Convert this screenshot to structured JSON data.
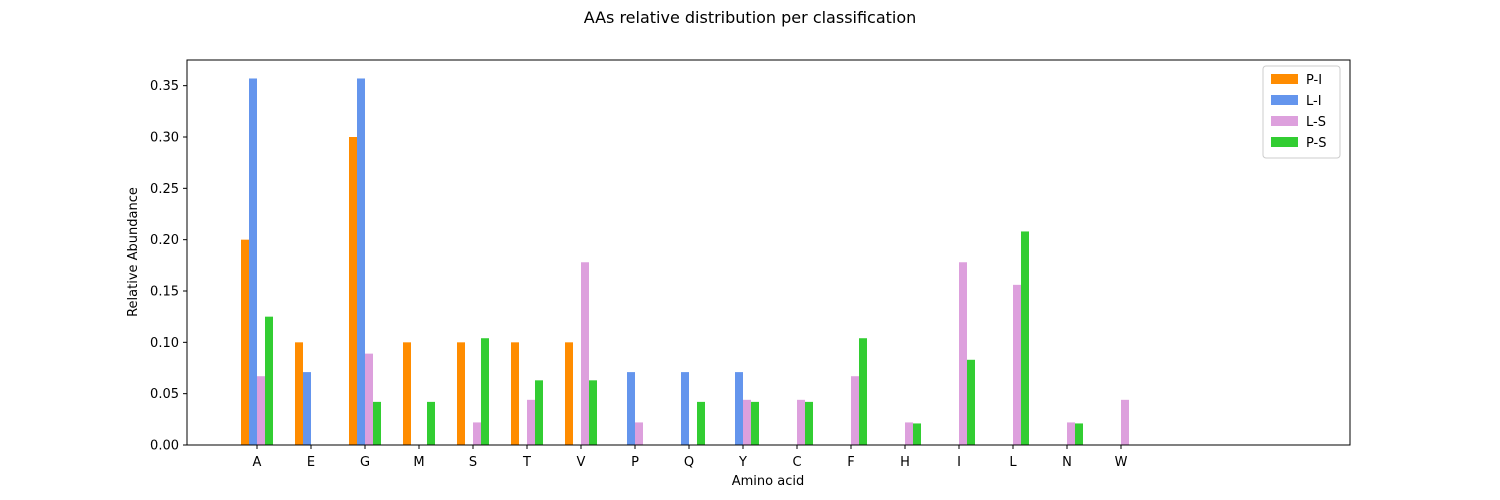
{
  "chart_data": {
    "type": "bar",
    "title": "AAs relative distribution per classification",
    "xlabel": "Amino acid",
    "ylabel": "Relative Abundance",
    "ylim": [
      0,
      0.375
    ],
    "yticks": [
      "0.00",
      "0.05",
      "0.10",
      "0.15",
      "0.20",
      "0.25",
      "0.30",
      "0.35"
    ],
    "categories": [
      "A",
      "E",
      "G",
      "M",
      "S",
      "T",
      "V",
      "P",
      "Q",
      "Y",
      "C",
      "F",
      "H",
      "I",
      "L",
      "N",
      "W"
    ],
    "legend_position": "top-right",
    "grid": false,
    "series": [
      {
        "name": "P-I",
        "color": "#ff8c00",
        "values": [
          0.2,
          0.1,
          0.3,
          0.1,
          0.1,
          0.1,
          0.1,
          0,
          0,
          0,
          0,
          0,
          0,
          0,
          0,
          0,
          0
        ]
      },
      {
        "name": "L-I",
        "color": "#6495ed",
        "values": [
          0.357,
          0.071,
          0.357,
          0,
          0,
          0,
          0,
          0.071,
          0.071,
          0.071,
          0,
          0,
          0,
          0,
          0,
          0,
          0
        ]
      },
      {
        "name": "L-S",
        "color": "#dda0dd",
        "values": [
          0.067,
          0,
          0.089,
          0,
          0.022,
          0.044,
          0.178,
          0.022,
          0,
          0.044,
          0.044,
          0.067,
          0.022,
          0.178,
          0.156,
          0.022,
          0.044
        ]
      },
      {
        "name": "P-S",
        "color": "#32cd32",
        "values": [
          0.125,
          0,
          0.042,
          0.042,
          0.104,
          0.063,
          0.063,
          0,
          0.042,
          0.042,
          0.042,
          0.104,
          0.021,
          0.083,
          0.208,
          0.021,
          0
        ]
      }
    ]
  }
}
